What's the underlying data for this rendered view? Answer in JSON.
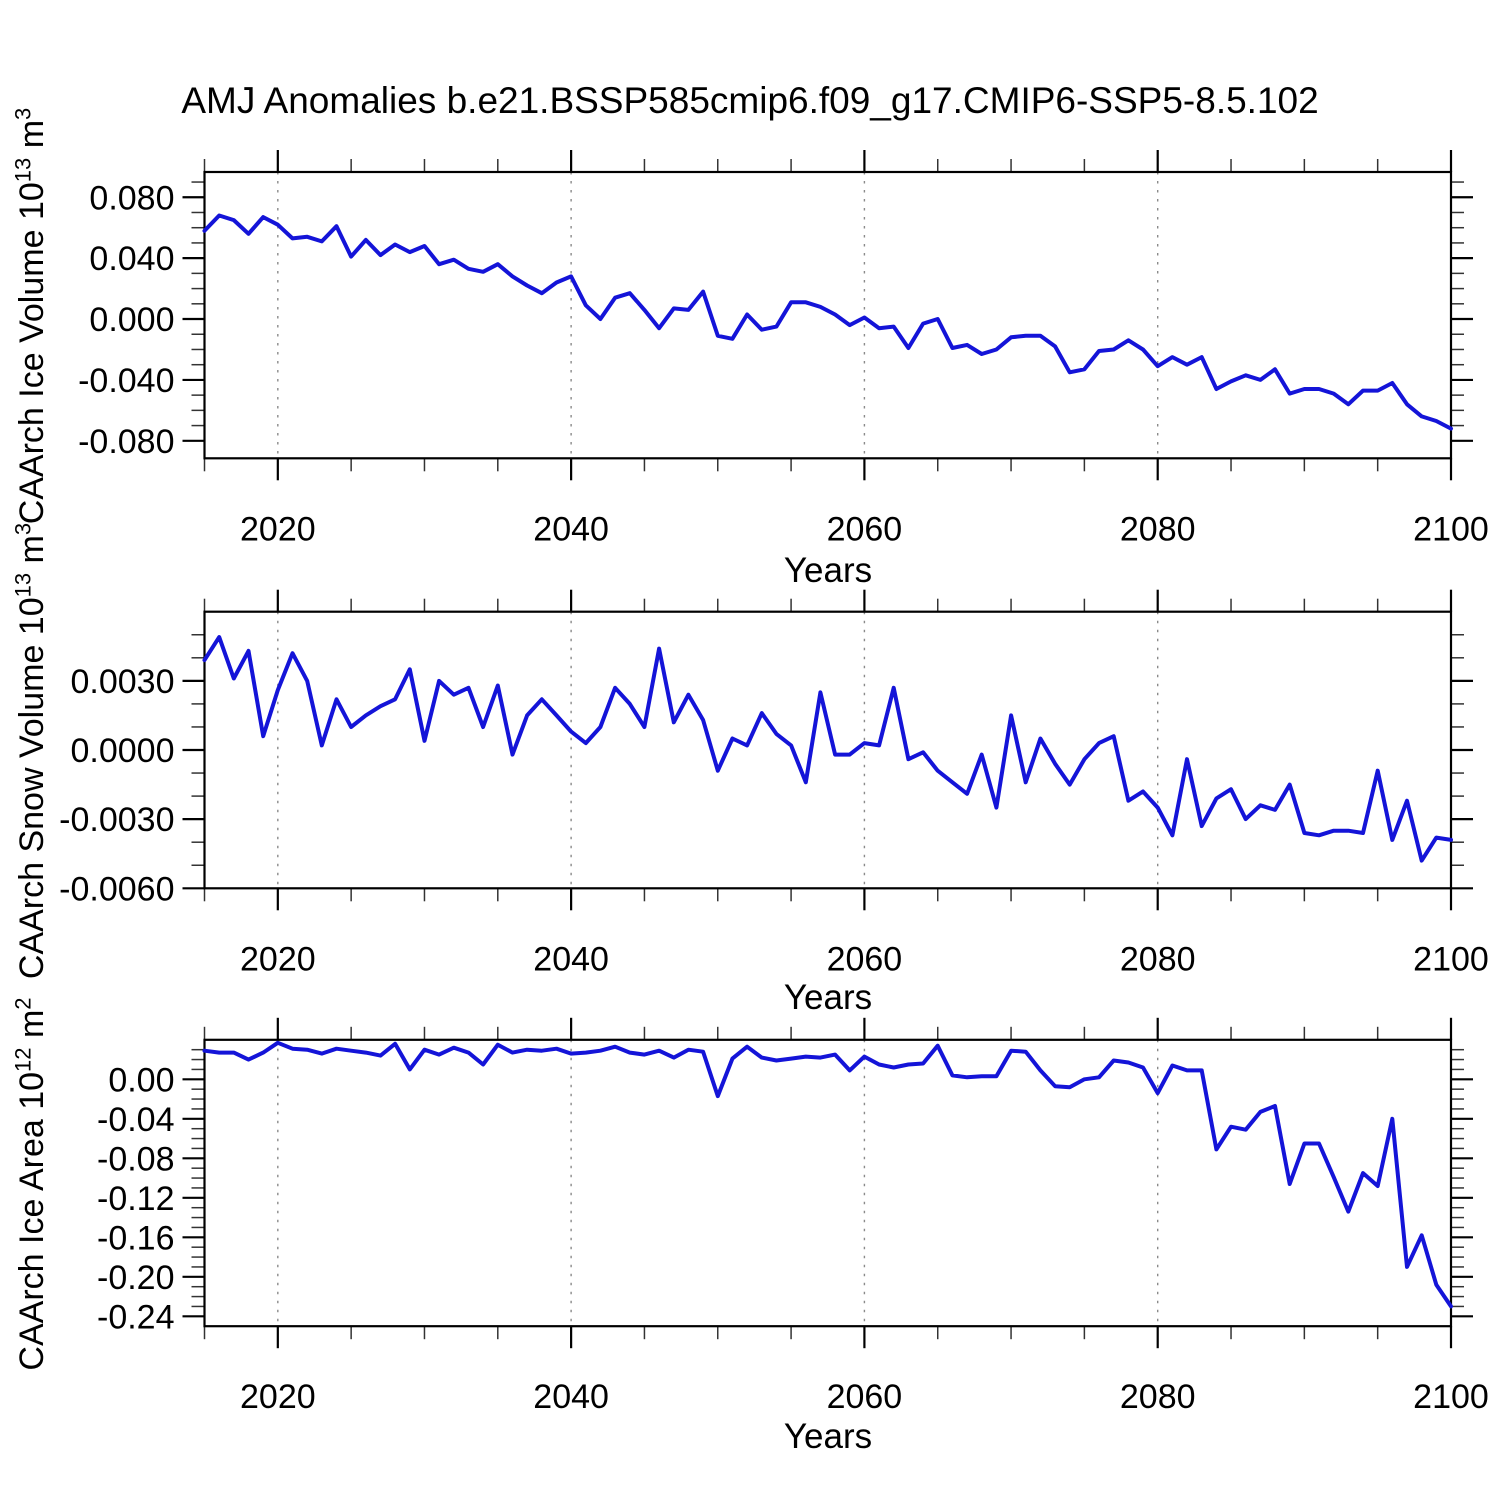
{
  "title": "AMJ Anomalies b.e21.BSSP585cmip6.f09_g17.CMIP6-SSP5-8.5.102",
  "line_color": "#1414d8",
  "axis_color": "#000000",
  "grid_color": "#8a8a8a",
  "background": "#ffffff",
  "grid_years": [
    2020,
    2040,
    2060,
    2080
  ],
  "years": [
    2015,
    2016,
    2017,
    2018,
    2019,
    2020,
    2021,
    2022,
    2023,
    2024,
    2025,
    2026,
    2027,
    2028,
    2029,
    2030,
    2031,
    2032,
    2033,
    2034,
    2035,
    2036,
    2037,
    2038,
    2039,
    2040,
    2041,
    2042,
    2043,
    2044,
    2045,
    2046,
    2047,
    2048,
    2049,
    2050,
    2051,
    2052,
    2053,
    2054,
    2055,
    2056,
    2057,
    2058,
    2059,
    2060,
    2061,
    2062,
    2063,
    2064,
    2065,
    2066,
    2067,
    2068,
    2069,
    2070,
    2071,
    2072,
    2073,
    2074,
    2075,
    2076,
    2077,
    2078,
    2079,
    2080,
    2081,
    2082,
    2083,
    2084,
    2085,
    2086,
    2087,
    2088,
    2089,
    2090,
    2091,
    2092,
    2093,
    2094,
    2095,
    2096,
    2097,
    2098,
    2099,
    2100
  ],
  "chart_data": [
    {
      "type": "line",
      "id": "ice-volume",
      "name": "CAArch Ice Volume",
      "ylabel_prefix": "CAArch Ice Volume 10",
      "ylabel_exp": "13",
      "ylabel_unit": " m",
      "ylabel_unit_exp": "3",
      "xlabel": "Years",
      "xlim": [
        2015,
        2100
      ],
      "xticks": [
        2020,
        2040,
        2060,
        2080,
        2100
      ],
      "xtick_labels": [
        "2020",
        "2040",
        "2060",
        "2080",
        "2100"
      ],
      "x_minor_step": 5,
      "ylim": [
        -0.0915,
        0.0966
      ],
      "yticks": [
        0.08,
        0.04,
        0.0,
        -0.04,
        -0.08
      ],
      "ytick_labels": [
        "0.080",
        "0.040",
        "0.000",
        "-0.040",
        "-0.080"
      ],
      "y_minor_step": 0.01,
      "values": [
        0.058,
        0.068,
        0.065,
        0.056,
        0.067,
        0.062,
        0.053,
        0.054,
        0.051,
        0.061,
        0.041,
        0.052,
        0.042,
        0.049,
        0.044,
        0.048,
        0.036,
        0.039,
        0.033,
        0.031,
        0.036,
        0.028,
        0.022,
        0.017,
        0.024,
        0.028,
        0.009,
        0.0,
        0.014,
        0.017,
        0.006,
        -0.006,
        0.007,
        0.006,
        0.018,
        -0.011,
        -0.013,
        0.003,
        -0.007,
        -0.005,
        0.011,
        0.011,
        0.008,
        0.003,
        -0.004,
        0.001,
        -0.006,
        -0.005,
        -0.019,
        -0.003,
        0.0,
        -0.019,
        -0.017,
        -0.023,
        -0.02,
        -0.012,
        -0.011,
        -0.011,
        -0.018,
        -0.035,
        -0.033,
        -0.021,
        -0.02,
        -0.014,
        -0.02,
        -0.031,
        -0.025,
        -0.03,
        -0.025,
        -0.046,
        -0.041,
        -0.037,
        -0.04,
        -0.033,
        -0.049,
        -0.046,
        -0.046,
        -0.049,
        -0.056,
        -0.047,
        -0.047,
        -0.042,
        -0.056,
        -0.064,
        -0.067,
        -0.072
      ]
    },
    {
      "type": "line",
      "id": "snow-volume",
      "name": "CAArch Snow Volume",
      "ylabel_prefix": "CAArch Snow Volume 10",
      "ylabel_exp": "13",
      "ylabel_unit": " m",
      "ylabel_unit_exp": "3",
      "xlabel": "Years",
      "xlim": [
        2015,
        2100
      ],
      "xticks": [
        2020,
        2040,
        2060,
        2080,
        2100
      ],
      "xtick_labels": [
        "2020",
        "2040",
        "2060",
        "2080",
        "2100"
      ],
      "x_minor_step": 5,
      "ylim": [
        -0.006,
        0.006
      ],
      "yticks": [
        0.003,
        0.0,
        -0.003,
        -0.006
      ],
      "ytick_labels": [
        "0.0030",
        "0.0000",
        "-0.0030",
        "-0.0060"
      ],
      "y_minor_step": 0.001,
      "values": [
        0.0039,
        0.0049,
        0.0031,
        0.0043,
        0.0006,
        0.0026,
        0.0042,
        0.003,
        0.0002,
        0.0022,
        0.001,
        0.0015,
        0.0019,
        0.0022,
        0.0035,
        0.0004,
        0.003,
        0.0024,
        0.0027,
        0.001,
        0.0028,
        -0.0002,
        0.0015,
        0.0022,
        0.0015,
        0.0008,
        0.0003,
        0.001,
        0.0027,
        0.002,
        0.001,
        0.0044,
        0.0012,
        0.0024,
        0.0013,
        -0.0009,
        0.0005,
        0.0002,
        0.0016,
        0.0007,
        0.0002,
        -0.0014,
        0.0025,
        -0.0002,
        -0.0002,
        0.0003,
        0.0002,
        0.0027,
        -0.0004,
        -0.0001,
        -0.0009,
        -0.0014,
        -0.0019,
        -0.0002,
        -0.0025,
        0.0015,
        -0.0014,
        0.0005,
        -0.0006,
        -0.0015,
        -0.0004,
        0.0003,
        0.0006,
        -0.0022,
        -0.0018,
        -0.0025,
        -0.0037,
        -0.0004,
        -0.0033,
        -0.0021,
        -0.0017,
        -0.003,
        -0.0024,
        -0.0026,
        -0.0015,
        -0.0036,
        -0.0037,
        -0.0035,
        -0.0035,
        -0.0036,
        -0.0009,
        -0.0039,
        -0.0022,
        -0.0048,
        -0.0038,
        -0.0039
      ]
    },
    {
      "type": "line",
      "id": "ice-area",
      "name": "CAArch Ice Area",
      "ylabel_prefix": "CAArch Ice Area 10",
      "ylabel_exp": "12",
      "ylabel_unit": " m",
      "ylabel_unit_exp": "2",
      "xlabel": "Years",
      "xlim": [
        2015,
        2100
      ],
      "xticks": [
        2020,
        2040,
        2060,
        2080,
        2100
      ],
      "xtick_labels": [
        "2020",
        "2040",
        "2060",
        "2080",
        "2100"
      ],
      "x_minor_step": 5,
      "ylim": [
        -0.25,
        0.04
      ],
      "yticks": [
        0.0,
        -0.04,
        -0.08,
        -0.12,
        -0.16,
        -0.2,
        -0.24
      ],
      "ytick_labels": [
        "0.00",
        "-0.04",
        "-0.08",
        "-0.12",
        "-0.16",
        "-0.20",
        "-0.24"
      ],
      "y_minor_step": 0.01,
      "values": [
        0.029,
        0.027,
        0.027,
        0.02,
        0.027,
        0.037,
        0.031,
        0.03,
        0.026,
        0.031,
        0.029,
        0.027,
        0.024,
        0.036,
        0.01,
        0.03,
        0.025,
        0.032,
        0.027,
        0.015,
        0.035,
        0.027,
        0.03,
        0.029,
        0.031,
        0.026,
        0.027,
        0.029,
        0.033,
        0.027,
        0.025,
        0.029,
        0.022,
        0.03,
        0.028,
        -0.017,
        0.021,
        0.033,
        0.022,
        0.019,
        0.021,
        0.023,
        0.022,
        0.025,
        0.009,
        0.023,
        0.015,
        0.012,
        0.015,
        0.016,
        0.034,
        0.004,
        0.002,
        0.003,
        0.003,
        0.029,
        0.028,
        0.009,
        -0.007,
        -0.008,
        0.0,
        0.002,
        0.019,
        0.017,
        0.012,
        -0.014,
        0.014,
        0.009,
        0.009,
        -0.071,
        -0.048,
        -0.051,
        -0.033,
        -0.027,
        -0.106,
        -0.065,
        -0.065,
        -0.099,
        -0.134,
        -0.095,
        -0.108,
        -0.04,
        -0.19,
        -0.158,
        -0.208,
        -0.23
      ]
    }
  ]
}
